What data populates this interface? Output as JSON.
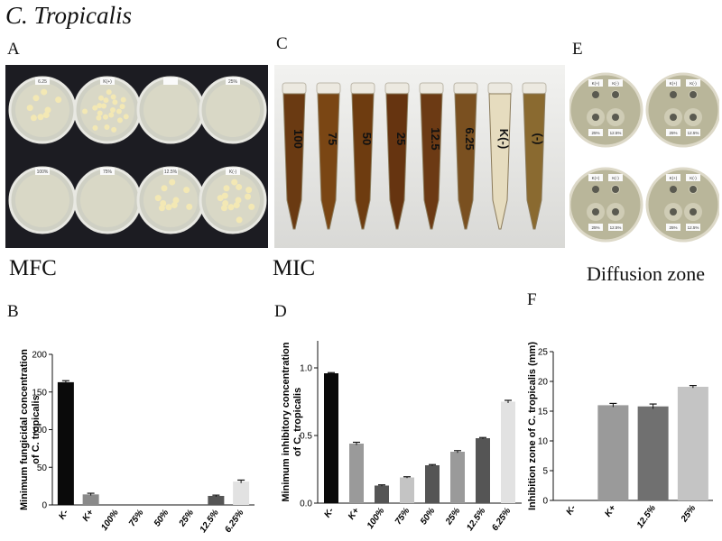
{
  "title": "C. Tropicalis",
  "panel_labels": {
    "a": "A",
    "b": "B",
    "c": "C",
    "d": "D",
    "e": "E",
    "f": "F"
  },
  "captions": {
    "mfc": "MFC",
    "mic": "MIC",
    "diffusion": "Diffusion zone"
  },
  "plate_labels_a": [
    "6.25",
    "K(+)",
    "",
    "25%",
    "100%",
    "75%",
    "12.5%",
    "K(-)"
  ],
  "tube_labels_c": [
    "100",
    "75",
    "50",
    "25",
    "12.5",
    "6.25",
    "K(-)",
    "(-)"
  ],
  "plate_labels_e": [
    "K(+)",
    "K(-)",
    "25%",
    "12.5%"
  ],
  "chart_data": [
    {
      "id": "B",
      "type": "bar",
      "ylabel_lines": [
        "Minimum fungicidal concentration",
        "of C. tropicalis"
      ],
      "categories": [
        "K-",
        "K+",
        "100%",
        "75%",
        "50%",
        "25%",
        "12.5%",
        "6.25%"
      ],
      "values": [
        163,
        14,
        0,
        0,
        0,
        0,
        12,
        31
      ],
      "errors": [
        2,
        1.5,
        0,
        0,
        0,
        0,
        1,
        2
      ],
      "colors": [
        "#0a0a0a",
        "#8a8a8a",
        "#555555",
        "#8a8a8a",
        "#555555",
        "#9a9a9a",
        "#555555",
        "#e2e2e2"
      ],
      "yticks": [
        0,
        50,
        100,
        150,
        200
      ],
      "ylim": [
        0,
        200
      ]
    },
    {
      "id": "D",
      "type": "bar",
      "ylabel_lines": [
        "Minimum inhibitory concentration",
        "of C. tropicalis"
      ],
      "categories": [
        "K-",
        "K+",
        "100%",
        "75%",
        "50%",
        "25%",
        "12.5%",
        "6.25%"
      ],
      "values": [
        0.96,
        0.44,
        0.13,
        0.19,
        0.28,
        0.38,
        0.48,
        0.75
      ],
      "errors": [
        0.005,
        0.01,
        0.005,
        0.005,
        0.005,
        0.008,
        0.005,
        0.01
      ],
      "colors": [
        "#0a0a0a",
        "#9a9a9a",
        "#555555",
        "#c4c4c4",
        "#555555",
        "#9a9a9a",
        "#555555",
        "#e2e2e2"
      ],
      "yticks": [
        0.0,
        0.5,
        1.0
      ],
      "ytick_labels": [
        "0.0",
        "0.5",
        "1.0"
      ],
      "ylim": [
        0,
        1.2
      ]
    },
    {
      "id": "F",
      "type": "bar",
      "ylabel_lines": [
        "Inhibition zone of C. tropicalis (mm)"
      ],
      "categories": [
        "K-",
        "K+",
        "12.5%",
        "25%"
      ],
      "values": [
        0,
        16,
        15.8,
        19.1
      ],
      "errors": [
        0,
        0.3,
        0.4,
        0.2
      ],
      "colors": [
        "#8a8a8a",
        "#9a9a9a",
        "#707070",
        "#c4c4c4"
      ],
      "yticks": [
        0,
        5,
        10,
        15,
        20,
        25
      ],
      "ylim": [
        0,
        25
      ]
    }
  ]
}
